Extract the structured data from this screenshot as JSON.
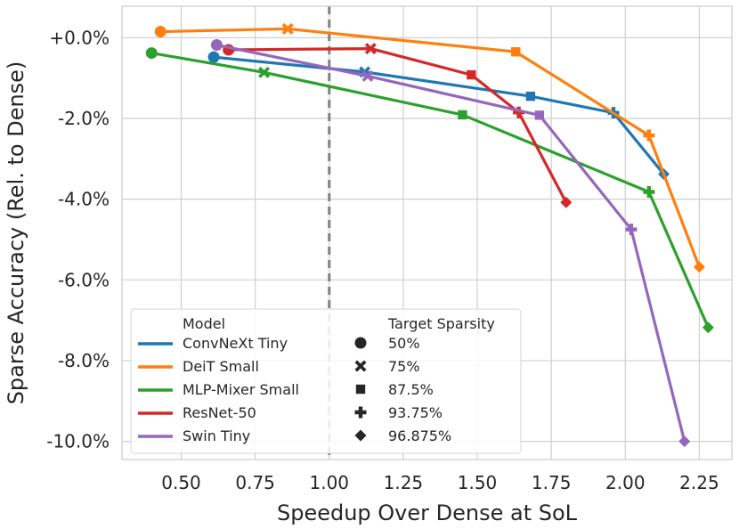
{
  "chart_data": {
    "type": "line",
    "title": "",
    "xlabel": "Speedup Over Dense at SoL",
    "ylabel": "Sparse Accuracy (Rel. to Dense)",
    "xlim": [
      0.3,
      2.36
    ],
    "ylim": [
      -10.45,
      0.78
    ],
    "grid": true,
    "x_ticks": [
      0.5,
      0.75,
      1.0,
      1.25,
      1.5,
      1.75,
      2.0,
      2.25
    ],
    "x_tick_labels": [
      "0.50",
      "0.75",
      "1.00",
      "1.25",
      "1.50",
      "1.75",
      "2.00",
      "2.25"
    ],
    "y_ticks": [
      0,
      -2,
      -4,
      -6,
      -8,
      -10
    ],
    "y_tick_labels": [
      "+0.0%",
      "-2.0%",
      "-4.0%",
      "-6.0%",
      "-8.0%",
      "-10.0%"
    ],
    "reference_line": {
      "x": 1.0,
      "style": "dashed",
      "color": "#808080"
    },
    "sparsity_levels": [
      "50%",
      "75%",
      "87.5%",
      "93.75%",
      "96.875%"
    ],
    "marker_shapes": [
      "circle",
      "x",
      "square",
      "plus",
      "diamond"
    ],
    "series": [
      {
        "name": "ConvNeXt Tiny",
        "color": "#1f77b4",
        "x": [
          0.61,
          1.12,
          1.68,
          1.96,
          2.13
        ],
        "y": [
          -0.48,
          -0.85,
          -1.45,
          -1.86,
          -3.38
        ]
      },
      {
        "name": "DeiT Small",
        "color": "#ff7f0e",
        "x": [
          0.43,
          0.86,
          1.63,
          2.08,
          2.25
        ],
        "y": [
          0.15,
          0.22,
          -0.35,
          -2.42,
          -5.68
        ]
      },
      {
        "name": "MLP-Mixer Small",
        "color": "#2ca02c",
        "x": [
          0.4,
          0.78,
          1.45,
          2.08,
          2.28
        ],
        "y": [
          -0.38,
          -0.86,
          -1.91,
          -3.82,
          -7.18
        ]
      },
      {
        "name": "ResNet-50",
        "color": "#d62728",
        "x": [
          0.66,
          1.14,
          1.48,
          1.64,
          1.8
        ],
        "y": [
          -0.3,
          -0.27,
          -0.92,
          -1.85,
          -4.08
        ]
      },
      {
        "name": "Swin Tiny",
        "color": "#9467bd",
        "x": [
          0.62,
          1.13,
          1.71,
          2.02,
          2.2
        ],
        "y": [
          -0.18,
          -0.95,
          -1.92,
          -4.75,
          -10.0
        ]
      }
    ],
    "legend": {
      "position": "lower-left",
      "model_header": "Model",
      "sparsity_header": "Target Sparsity"
    }
  }
}
